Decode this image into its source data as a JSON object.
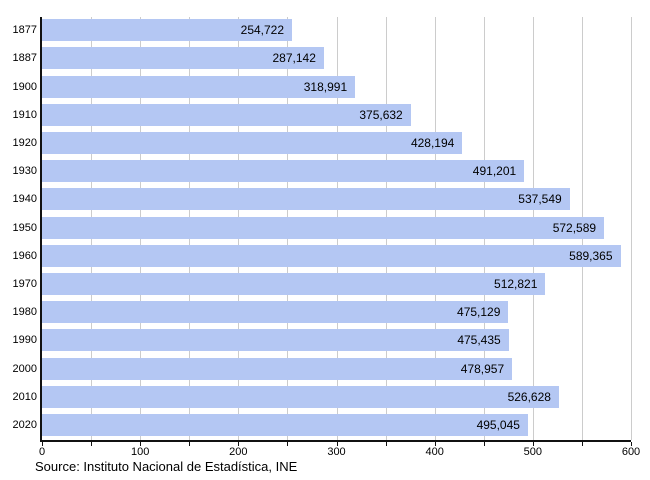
{
  "chart_data": {
    "type": "bar",
    "orientation": "horizontal",
    "title": "",
    "xlabel": "",
    "ylabel": "",
    "categories": [
      "1877",
      "1887",
      "1900",
      "1910",
      "1920",
      "1930",
      "1940",
      "1950",
      "1960",
      "1970",
      "1980",
      "1990",
      "2000",
      "2010",
      "2020"
    ],
    "values": [
      254722,
      287142,
      318991,
      375632,
      428194,
      491201,
      537549,
      572589,
      589365,
      512821,
      475129,
      475435,
      478957,
      526628,
      495045
    ],
    "value_labels": [
      "254,722",
      "287,142",
      "318,991",
      "375,632",
      "428,194",
      "491,201",
      "537,549",
      "572,589",
      "589,365",
      "512,821",
      "475,129",
      "475,435",
      "478,957",
      "526,628",
      "495,045"
    ],
    "xlim": [
      0,
      600000
    ],
    "x_tick_step": 50000,
    "x_label_step": 100000,
    "x_tick_labels": [
      "0",
      "100",
      "200",
      "300",
      "400",
      "500",
      "600"
    ],
    "grid": true,
    "legend": null,
    "bar_color": "#b4c7f3",
    "grid_color": "#cccccc",
    "axis_color": "#111111",
    "source": "Source: Instituto Nacional de Estadística, INE"
  }
}
